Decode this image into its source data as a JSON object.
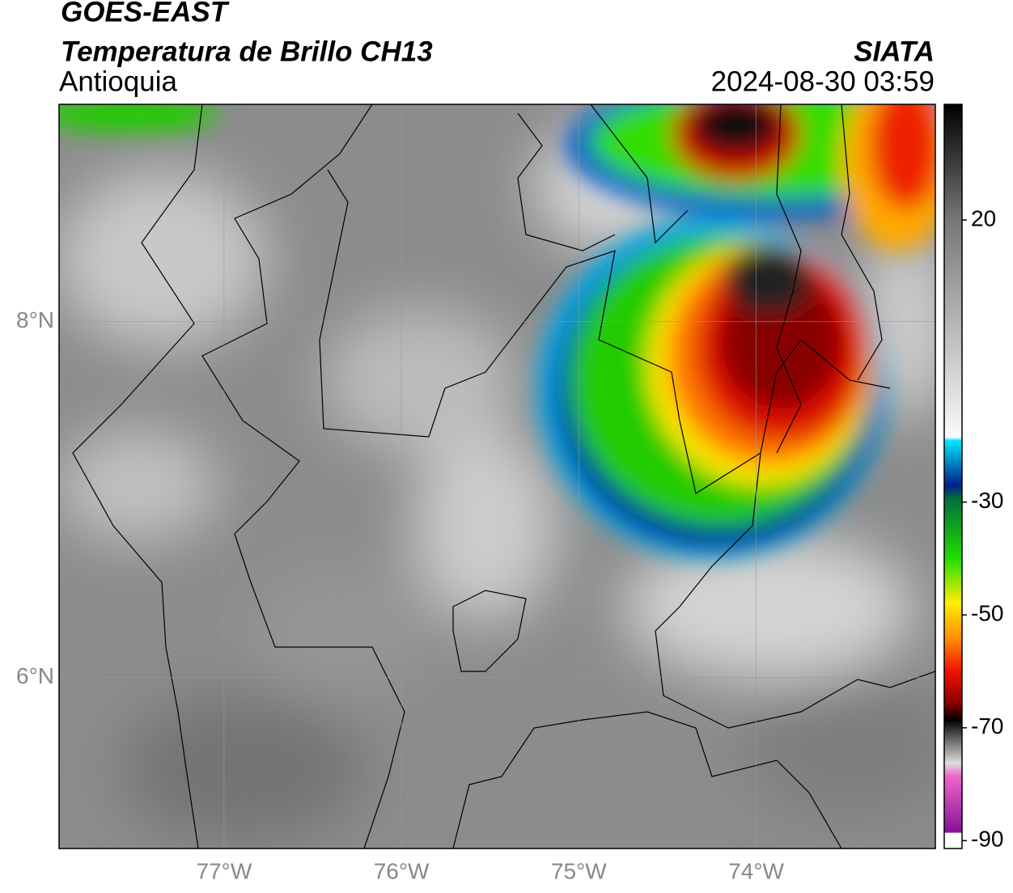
{
  "header": {
    "title": "GOES-EAST",
    "subtitle": "Temperatura de Brillo CH13",
    "region": "Antioquia",
    "source": "SIATA",
    "datetime": "2024-08-30 03:59"
  },
  "map": {
    "xlim": [
      -77.93,
      -72.99
    ],
    "ylim": [
      5.04,
      9.22
    ],
    "xticks": [
      {
        "value": -77,
        "label": "77°W"
      },
      {
        "value": -76,
        "label": "76°W"
      },
      {
        "value": -75,
        "label": "75°W"
      },
      {
        "value": -74,
        "label": "74°W"
      }
    ],
    "yticks": [
      {
        "value": 8,
        "label": "8°N"
      },
      {
        "value": 6,
        "label": "6°N"
      }
    ],
    "grid": true,
    "colorbar": {
      "lim": [
        -91.4,
        40.5
      ],
      "ticks": [
        20,
        -30,
        -50,
        -70,
        -90
      ]
    }
  }
}
